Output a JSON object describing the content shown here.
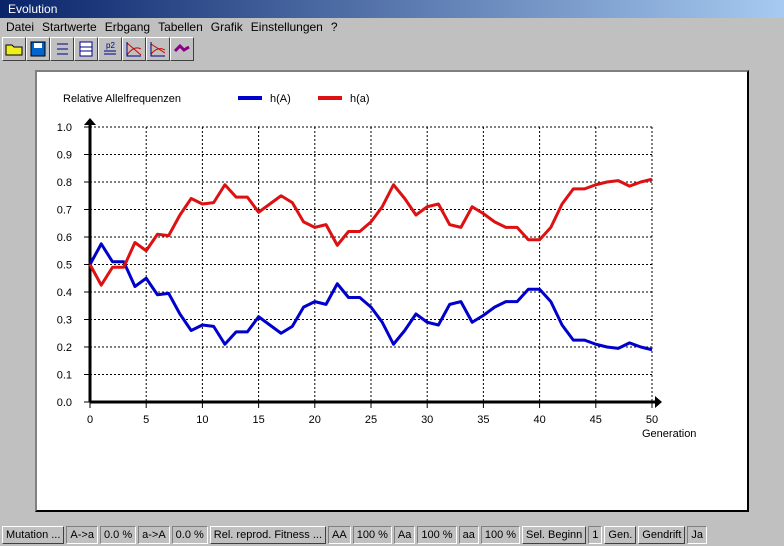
{
  "window": {
    "title": "Evolution"
  },
  "menu": [
    "Datei",
    "Startwerte",
    "Erbgang",
    "Tabellen",
    "Grafik",
    "Einstellungen",
    "?"
  ],
  "toolbar": [
    {
      "icon": "open-folder-icon"
    },
    {
      "icon": "save-icon"
    },
    {
      "icon": "list-icon"
    },
    {
      "icon": "table-icon"
    },
    {
      "icon": "p2-table-icon"
    },
    {
      "icon": "curves-graph-icon"
    },
    {
      "icon": "curves-graph-2-icon"
    },
    {
      "icon": "trend-arrow-icon"
    }
  ],
  "status": [
    {
      "text": "Mutation ...",
      "kind": "btn"
    },
    {
      "text": "A->a",
      "kind": "fld"
    },
    {
      "text": "0.0 %",
      "kind": "fld"
    },
    {
      "text": "a->A",
      "kind": "fld"
    },
    {
      "text": "0.0 %",
      "kind": "fld"
    },
    {
      "text": "Rel. reprod. Fitness ...",
      "kind": "btn"
    },
    {
      "text": "AA",
      "kind": "fld"
    },
    {
      "text": "100 %",
      "kind": "fld"
    },
    {
      "text": "Aa",
      "kind": "fld"
    },
    {
      "text": "100 %",
      "kind": "fld"
    },
    {
      "text": "aa",
      "kind": "fld"
    },
    {
      "text": "100 %",
      "kind": "fld"
    },
    {
      "text": "Sel. Beginn",
      "kind": "btn"
    },
    {
      "text": "1",
      "kind": "fld"
    },
    {
      "text": "Gen.",
      "kind": "btn"
    },
    {
      "text": "Gendrift",
      "kind": "btn"
    },
    {
      "text": "Ja",
      "kind": "fld"
    }
  ],
  "chart_data": {
    "type": "line",
    "title": "Relative Allelfrequenzen",
    "xlabel": "Generation",
    "ylabel": "",
    "xlim": [
      0,
      50
    ],
    "ylim": [
      0,
      1
    ],
    "xticks": [
      "0",
      "5",
      "10",
      "15",
      "20",
      "25",
      "30",
      "35",
      "40",
      "45",
      "50"
    ],
    "yticks": [
      "0.0",
      "0.1",
      "0.2",
      "0.3",
      "0.4",
      "0.5",
      "0.6",
      "0.7",
      "0.8",
      "0.9",
      "1.0"
    ],
    "grid": true,
    "legend": "top",
    "series": [
      {
        "name": "h(A)",
        "color": "#0000cc",
        "values": [
          0.5,
          0.575,
          0.51,
          0.51,
          0.42,
          0.45,
          0.39,
          0.395,
          0.32,
          0.26,
          0.28,
          0.275,
          0.21,
          0.255,
          0.255,
          0.31,
          0.28,
          0.25,
          0.275,
          0.345,
          0.365,
          0.355,
          0.43,
          0.38,
          0.38,
          0.345,
          0.29,
          0.21,
          0.26,
          0.32,
          0.29,
          0.28,
          0.355,
          0.365,
          0.29,
          0.315,
          0.345,
          0.365,
          0.365,
          0.41,
          0.41,
          0.365,
          0.28,
          0.225,
          0.225,
          0.21,
          0.2,
          0.195,
          0.215,
          0.2,
          0.19
        ]
      },
      {
        "name": "h(a)",
        "color": "#dd1111",
        "values": [
          0.5,
          0.425,
          0.49,
          0.49,
          0.58,
          0.55,
          0.61,
          0.605,
          0.68,
          0.74,
          0.72,
          0.725,
          0.79,
          0.745,
          0.745,
          0.69,
          0.72,
          0.75,
          0.725,
          0.655,
          0.635,
          0.645,
          0.57,
          0.62,
          0.62,
          0.655,
          0.71,
          0.79,
          0.74,
          0.68,
          0.71,
          0.72,
          0.645,
          0.635,
          0.71,
          0.685,
          0.655,
          0.635,
          0.635,
          0.59,
          0.59,
          0.635,
          0.72,
          0.775,
          0.775,
          0.79,
          0.8,
          0.805,
          0.785,
          0.8,
          0.81
        ]
      }
    ]
  }
}
